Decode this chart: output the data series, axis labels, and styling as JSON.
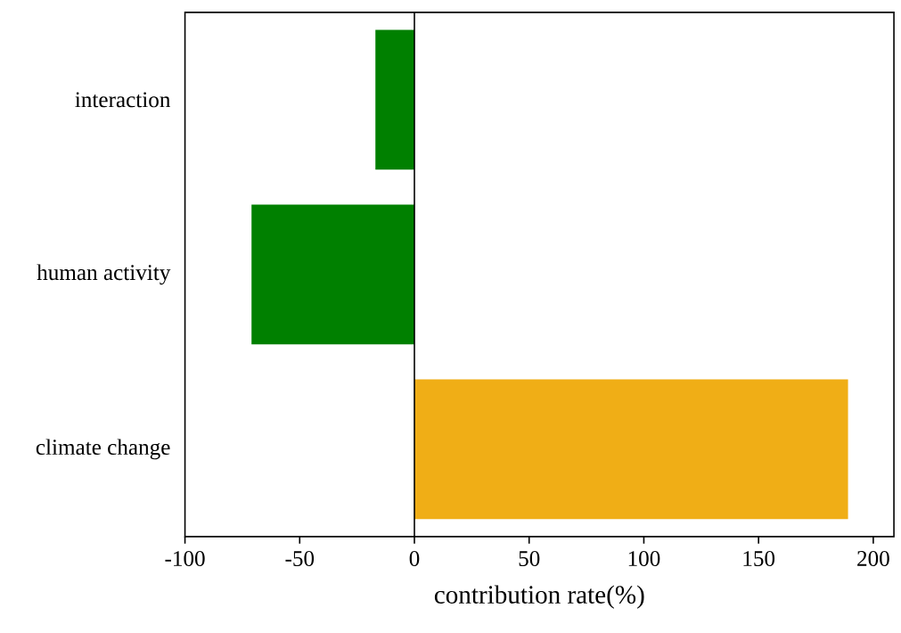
{
  "chart_data": {
    "type": "bar",
    "orientation": "horizontal",
    "xlabel": "contribution rate(%)",
    "categories": [
      "interaction",
      "human activity",
      "climate change"
    ],
    "values": [
      -17,
      -71,
      189
    ],
    "colors": [
      "#008000",
      "#008000",
      "#f0ae16"
    ],
    "xlim": [
      -100,
      209
    ],
    "xticks": [
      -100,
      -50,
      0,
      50,
      100,
      150,
      200
    ],
    "ref_lines": [
      {
        "axis": "x",
        "value": 0,
        "color": "#000000"
      }
    ]
  }
}
